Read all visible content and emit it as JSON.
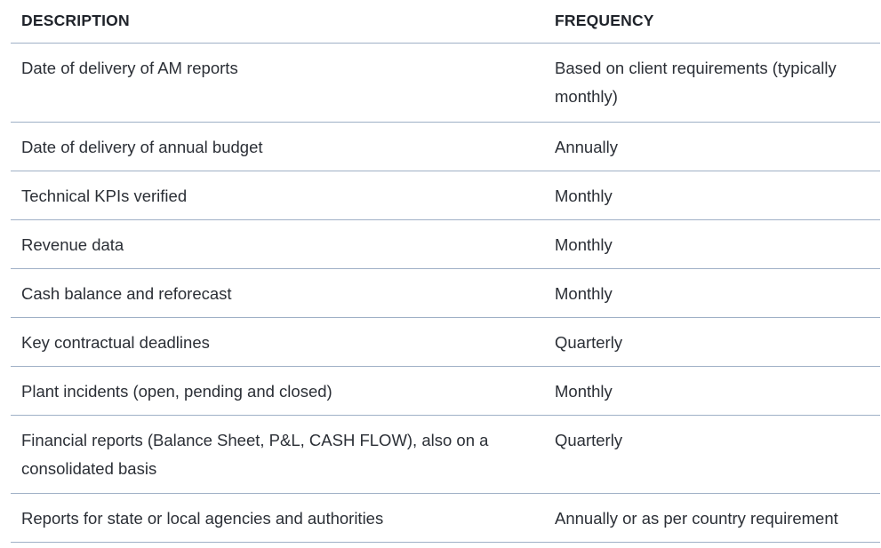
{
  "table": {
    "headers": {
      "description": "DESCRIPTION",
      "frequency": "FREQUENCY"
    },
    "rows": [
      {
        "description": "Date of delivery of AM reports",
        "frequency": "Based on client requirements (typically monthly)"
      },
      {
        "description": "Date of delivery of annual budget",
        "frequency": "Annually"
      },
      {
        "description": "Technical KPIs verified",
        "frequency": "Monthly"
      },
      {
        "description": "Revenue data",
        "frequency": "Monthly"
      },
      {
        "description": "Cash balance and reforecast",
        "frequency": "Monthly"
      },
      {
        "description": "Key contractual deadlines",
        "frequency": "Quarterly"
      },
      {
        "description": "Plant incidents (open, pending and closed)",
        "frequency": "Monthly"
      },
      {
        "description": "Financial reports (Balance Sheet, P&L, CASH FLOW), also on a consolidated basis",
        "frequency": "Quarterly"
      },
      {
        "description": "Reports for state or local agencies and authorities",
        "frequency": "Annually or as per country requirement"
      }
    ]
  }
}
